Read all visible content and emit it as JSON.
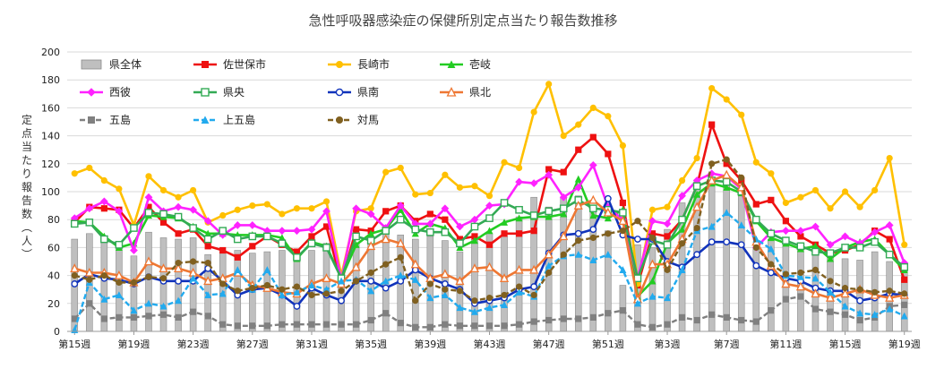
{
  "chart_data": {
    "type": "bar+line",
    "title": "急性呼吸器感染症の保健所別定点当たり報告数推移",
    "ylabel": "定点当たり報告数（人）",
    "xlabel": "",
    "ylim": [
      0,
      200
    ],
    "yticks": [
      0,
      20,
      40,
      60,
      80,
      100,
      120,
      140,
      160,
      180,
      200
    ],
    "grid": "horizontal",
    "legend_position": "top",
    "categories": [
      "第15週",
      "第16週",
      "第17週",
      "第18週",
      "第19週",
      "第20週",
      "第21週",
      "第22週",
      "第23週",
      "第24週",
      "第25週",
      "第26週",
      "第27週",
      "第28週",
      "第29週",
      "第30週",
      "第31週",
      "第32週",
      "第33週",
      "第34週",
      "第35週",
      "第36週",
      "第37週",
      "第38週",
      "第39週",
      "第40週",
      "第41週",
      "第42週",
      "第43週",
      "第44週",
      "第45週",
      "第46週",
      "第47週",
      "第48週",
      "第49週",
      "第50週",
      "第51週",
      "第52週",
      "第1週",
      "第2週",
      "第3週",
      "第4週",
      "第5週",
      "第6週",
      "第7週",
      "第8週",
      "第9週",
      "第10週",
      "第11週",
      "第12週",
      "第13週",
      "第14週",
      "第15週",
      "第16週",
      "第17週",
      "第18週",
      "第19週"
    ],
    "shown_tick_labels": [
      "第15週",
      "第19週",
      "第23週",
      "第27週",
      "第31週",
      "第35週",
      "第39週",
      "第43週",
      "第47週",
      "第51週",
      "第3週",
      "第7週",
      "第11週",
      "第15週",
      "第19週"
    ],
    "series": [
      {
        "name": "県全体",
        "kind": "bar",
        "color": "#bfbfbf",
        "values": [
          66,
          70,
          68,
          62,
          54,
          71,
          67,
          66,
          67,
          55,
          57,
          58,
          56,
          57,
          58,
          50,
          58,
          63,
          34,
          63,
          68,
          76,
          69,
          66,
          68,
          65,
          57,
          66,
          70,
          68,
          82,
          96,
          89,
          96,
          97,
          88,
          72,
          33,
          62,
          60,
          73,
          92,
          107,
          107,
          106,
          102,
          60,
          66,
          62,
          63,
          55,
          53,
          52,
          51,
          57,
          50,
          46
        ]
      },
      {
        "name": "佐世保市",
        "kind": "line",
        "color": "#ee1111",
        "marker": "square",
        "values": [
          78,
          89,
          88,
          87,
          74,
          89,
          78,
          70,
          73,
          61,
          58,
          53,
          61,
          68,
          62,
          57,
          68,
          75,
          35,
          73,
          72,
          86,
          90,
          79,
          84,
          80,
          66,
          68,
          62,
          70,
          70,
          72,
          116,
          114,
          130,
          139,
          127,
          92,
          33,
          70,
          68,
          80,
          104,
          148,
          120,
          108,
          91,
          94,
          79,
          68,
          62,
          56,
          58,
          62,
          72,
          66,
          37
        ]
      },
      {
        "name": "長崎市",
        "kind": "line",
        "color": "#ffc000",
        "marker": "circle",
        "values": [
          113,
          117,
          108,
          102,
          76,
          111,
          101,
          96,
          101,
          78,
          83,
          87,
          90,
          91,
          84,
          88,
          88,
          93,
          40,
          86,
          88,
          114,
          117,
          98,
          99,
          112,
          103,
          104,
          97,
          121,
          117,
          157,
          177,
          140,
          148,
          160,
          154,
          133,
          34,
          87,
          89,
          108,
          124,
          174,
          166,
          155,
          121,
          113,
          92,
          96,
          101,
          88,
          100,
          89,
          101,
          124,
          62
        ]
      },
      {
        "name": "壱岐",
        "kind": "line",
        "color": "#22cc22",
        "marker": "triangle",
        "values": [
          79,
          78,
          68,
          60,
          63,
          83,
          82,
          81,
          75,
          70,
          70,
          69,
          69,
          69,
          67,
          52,
          64,
          61,
          38,
          62,
          70,
          73,
          87,
          70,
          77,
          74,
          60,
          65,
          72,
          78,
          81,
          82,
          82,
          84,
          109,
          83,
          81,
          87,
          25,
          36,
          63,
          73,
          98,
          106,
          103,
          99,
          79,
          67,
          63,
          59,
          61,
          52,
          60,
          64,
          66,
          55,
          44
        ]
      },
      {
        "name": "西彼",
        "kind": "line",
        "color": "#ff22ff",
        "marker": "diamond",
        "values": [
          81,
          88,
          93,
          86,
          58,
          96,
          86,
          89,
          87,
          79,
          69,
          76,
          76,
          72,
          72,
          72,
          73,
          86,
          37,
          88,
          84,
          74,
          90,
          77,
          77,
          88,
          75,
          80,
          90,
          91,
          107,
          106,
          112,
          96,
          103,
          119,
          89,
          80,
          38,
          79,
          77,
          97,
          108,
          113,
          111,
          102,
          60,
          71,
          72,
          72,
          75,
          62,
          68,
          63,
          71,
          76,
          49
        ]
      },
      {
        "name": "県央",
        "kind": "line",
        "color": "#33aa55",
        "marker": "square-open",
        "values": [
          77,
          78,
          66,
          62,
          74,
          85,
          84,
          82,
          74,
          66,
          72,
          66,
          68,
          68,
          63,
          53,
          63,
          60,
          38,
          68,
          65,
          72,
          80,
          73,
          71,
          71,
          63,
          75,
          81,
          92,
          87,
          83,
          86,
          88,
          94,
          88,
          87,
          85,
          38,
          65,
          62,
          80,
          104,
          108,
          107,
          100,
          80,
          70,
          65,
          61,
          57,
          56,
          60,
          60,
          64,
          55,
          46
        ]
      },
      {
        "name": "県南",
        "kind": "line",
        "color": "#1133bb",
        "marker": "circle-open",
        "values": [
          34,
          41,
          38,
          37,
          34,
          39,
          36,
          36,
          36,
          45,
          36,
          26,
          30,
          31,
          26,
          18,
          31,
          26,
          22,
          36,
          36,
          31,
          36,
          44,
          38,
          34,
          30,
          20,
          22,
          24,
          30,
          32,
          56,
          69,
          70,
          73,
          95,
          69,
          66,
          66,
          50,
          46,
          55,
          64,
          64,
          62,
          47,
          42,
          38,
          36,
          31,
          29,
          29,
          22,
          24,
          27,
          26
        ]
      },
      {
        "name": "県北",
        "kind": "line",
        "color": "#ee7733",
        "marker": "triangle-open",
        "values": [
          45,
          42,
          42,
          40,
          35,
          50,
          45,
          45,
          42,
          36,
          38,
          42,
          33,
          31,
          28,
          27,
          34,
          38,
          34,
          46,
          61,
          66,
          63,
          48,
          38,
          41,
          36,
          45,
          46,
          38,
          44,
          44,
          55,
          68,
          90,
          94,
          85,
          79,
          23,
          48,
          48,
          66,
          89,
          108,
          112,
          103,
          64,
          47,
          34,
          32,
          27,
          24,
          27,
          30,
          26,
          24,
          26
        ]
      },
      {
        "name": "五島",
        "kind": "line",
        "color": "#808080",
        "marker": "square",
        "dash": "6,3",
        "values": [
          9,
          20,
          9,
          10,
          10,
          11,
          12,
          10,
          14,
          11,
          5,
          4,
          4,
          4,
          5,
          5,
          5,
          5,
          5,
          5,
          8,
          13,
          6,
          3,
          3,
          5,
          4,
          4,
          4,
          4,
          5,
          7,
          8,
          9,
          9,
          10,
          13,
          15,
          5,
          3,
          5,
          10,
          8,
          12,
          10,
          8,
          7,
          15,
          23,
          25,
          16,
          14,
          12,
          8,
          10,
          18,
          19
        ]
      },
      {
        "name": "上五島",
        "kind": "line",
        "color": "#22aaee",
        "marker": "triangle",
        "dash": "6,3",
        "values": [
          1,
          35,
          23,
          26,
          15,
          20,
          18,
          22,
          38,
          26,
          27,
          44,
          30,
          44,
          26,
          28,
          33,
          30,
          36,
          37,
          29,
          36,
          40,
          37,
          24,
          26,
          17,
          14,
          17,
          19,
          28,
          25,
          47,
          54,
          55,
          51,
          55,
          44,
          20,
          25,
          24,
          44,
          72,
          75,
          85,
          76,
          66,
          59,
          40,
          39,
          38,
          28,
          18,
          13,
          12,
          16,
          11
        ]
      },
      {
        "name": "対馬",
        "kind": "line",
        "color": "#806020",
        "marker": "circle",
        "dash": "6,3",
        "values": [
          40,
          37,
          40,
          35,
          35,
          39,
          38,
          49,
          50,
          49,
          34,
          29,
          31,
          33,
          30,
          32,
          26,
          27,
          29,
          36,
          42,
          48,
          53,
          22,
          34,
          30,
          29,
          22,
          24,
          26,
          32,
          26,
          42,
          55,
          65,
          67,
          70,
          72,
          79,
          67,
          44,
          63,
          74,
          120,
          123,
          110,
          60,
          48,
          41,
          42,
          44,
          36,
          31,
          30,
          28,
          29,
          27
        ]
      }
    ]
  }
}
